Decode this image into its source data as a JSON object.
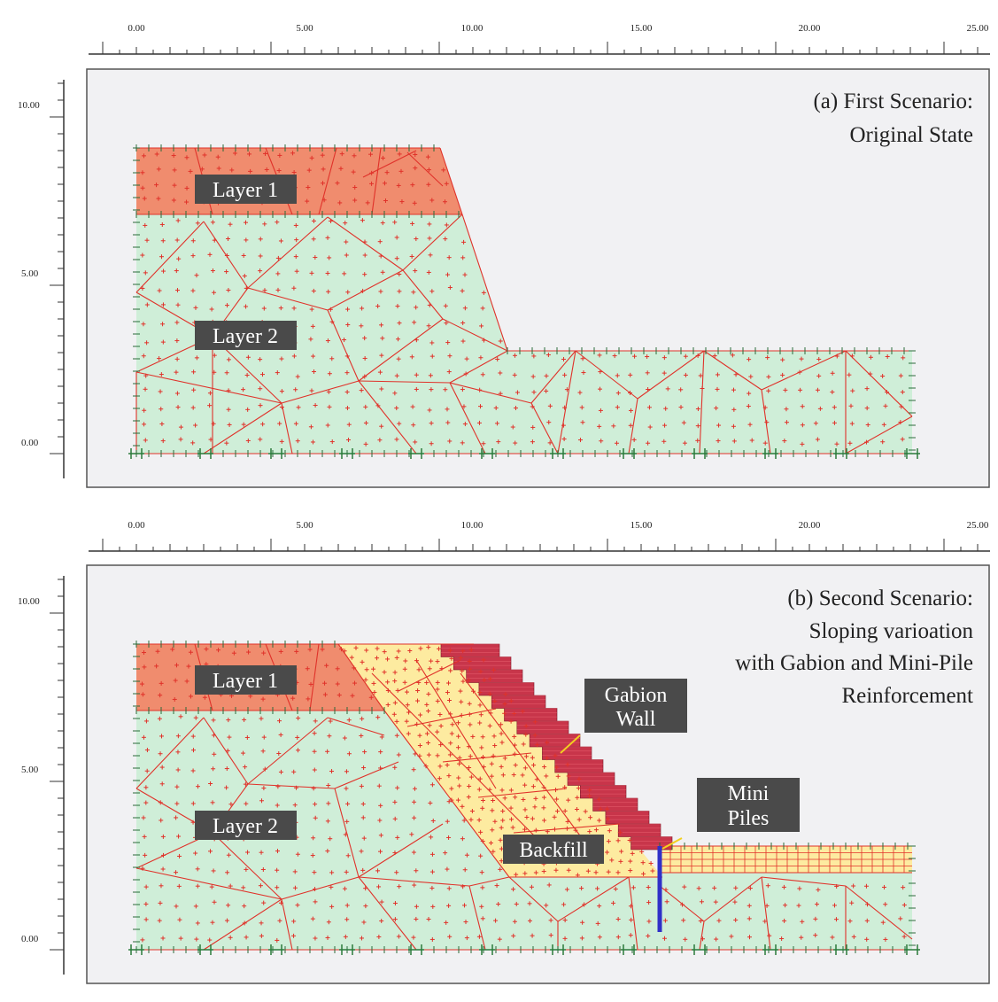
{
  "x_axis": {
    "ticks": [
      "0.00",
      "5.00",
      "10.00",
      "15.00",
      "20.00",
      "25.00"
    ],
    "values": [
      0,
      5,
      10,
      15,
      20,
      25
    ]
  },
  "y_axis": {
    "ticks": [
      "0.00",
      "5.00",
      "10.00"
    ],
    "values": [
      0,
      5,
      10
    ]
  },
  "panels": [
    {
      "id": "a",
      "title_lines": [
        "(a) First Scenario:",
        "Original State"
      ],
      "labels": [
        {
          "key": "layer1",
          "text": "Layer 1"
        },
        {
          "key": "layer2",
          "text": "Layer 2"
        }
      ]
    },
    {
      "id": "b",
      "title_lines": [
        "(b) Second Scenario:",
        "Sloping varioation",
        "with Gabion and Mini-Pile",
        "Reinforcement"
      ],
      "labels": [
        {
          "key": "layer1",
          "text": "Layer 1"
        },
        {
          "key": "layer2",
          "text": "Layer 2"
        },
        {
          "key": "gabion",
          "lines": [
            "Gabion",
            "Wall"
          ]
        },
        {
          "key": "minipiles",
          "lines": [
            "Mini",
            "Piles"
          ]
        },
        {
          "key": "backfill",
          "text": "Backfill"
        }
      ]
    }
  ],
  "colors": {
    "layer1": "#f08c6e",
    "layer2": "#cfeed8",
    "backfill": "#fdeba0",
    "gabion": "#c8354a",
    "mesh": "#e0322a",
    "pile": "#3030c8",
    "label_bg": "#4a4a4a",
    "canvas": "#f1f1f3"
  }
}
